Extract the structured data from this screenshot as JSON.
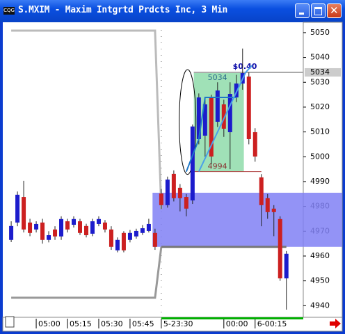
{
  "window": {
    "title": "S.MXIM - Maxim Intgrtd Prdcts Inc, 3 Min"
  },
  "chart_data": {
    "type": "candlestick",
    "up_color": "#1c1ccc",
    "down_color": "#cc2020",
    "ylim": [
      4935.6,
      5053.9
    ],
    "yticks": [
      4940,
      4950,
      4960,
      4970,
      4980,
      4990,
      5000,
      5010,
      5020,
      5030,
      5040,
      5050
    ],
    "xlim": [
      -0.9,
      46.7
    ],
    "xticks": [
      {
        "value": 4,
        "label": "05:00"
      },
      {
        "value": 9,
        "label": "05:15"
      },
      {
        "value": 14,
        "label": "05:30"
      },
      {
        "value": 19,
        "label": "05:45"
      },
      {
        "value": 24,
        "label": "5-23:30"
      },
      {
        "value": 34,
        "label": "00:00"
      },
      {
        "value": 39,
        "label": "6-00:15"
      }
    ],
    "candles": [
      {
        "o": 4966.5,
        "h": 4974.0,
        "l": 4965.6,
        "c": 4972.1
      },
      {
        "o": 4973.5,
        "h": 4986,
        "l": 4972,
        "c": 4984.7
      },
      {
        "o": 4983.8,
        "h": 4990.3,
        "l": 4969.5,
        "c": 4970.7
      },
      {
        "o": 4973.5,
        "h": 4975,
        "l": 4968,
        "c": 4969.3
      },
      {
        "o": 4970.7,
        "h": 4974,
        "l": 4969.5,
        "c": 4972.9
      },
      {
        "o": 4973.5,
        "h": 4975,
        "l": 4965,
        "c": 4966.5
      },
      {
        "o": 4966.5,
        "h": 4970,
        "l": 4965.5,
        "c": 4968.4
      },
      {
        "o": 4970.7,
        "h": 4972,
        "l": 4966.5,
        "c": 4967.9
      },
      {
        "o": 4967.9,
        "h": 4976,
        "l": 4966.5,
        "c": 4974.9
      },
      {
        "o": 4974.0,
        "h": 4975,
        "l": 4969.5,
        "c": 4970.7
      },
      {
        "o": 4972.6,
        "h": 4976,
        "l": 4971.5,
        "c": 4974.9
      },
      {
        "o": 4974.0,
        "h": 4975,
        "l": 4968.5,
        "c": 4969.3
      },
      {
        "o": 4972.1,
        "h": 4973,
        "l": 4967.5,
        "c": 4968.4
      },
      {
        "o": 4969.0,
        "h": 4975,
        "l": 4968,
        "c": 4974.0
      },
      {
        "o": 4972.9,
        "h": 4976,
        "l": 4972,
        "c": 4974.9
      },
      {
        "o": 4973.5,
        "h": 4974.5,
        "l": 4969.5,
        "c": 4970.7
      },
      {
        "o": 4970.7,
        "h": 4972,
        "l": 4962.5,
        "c": 4963.7
      },
      {
        "o": 4962.3,
        "h": 4967.5,
        "l": 4961.5,
        "c": 4966.5
      },
      {
        "o": 4969.3,
        "h": 4970,
        "l": 4961.5,
        "c": 4962.3
      },
      {
        "o": 4966.5,
        "h": 4970.5,
        "l": 4965.5,
        "c": 4969.3
      },
      {
        "o": 4967.9,
        "h": 4971,
        "l": 4967,
        "c": 4970.1
      },
      {
        "o": 4969.3,
        "h": 4972.5,
        "l": 4968.5,
        "c": 4971.2
      },
      {
        "o": 4970.1,
        "h": 4975,
        "l": 4969.5,
        "c": 4972.9
      },
      {
        "o": 4969.3,
        "h": 4971,
        "l": 4962.5,
        "c": 4963.7
      },
      {
        "o": 4985.2,
        "h": 4987,
        "l": 4979,
        "c": 4980.5
      },
      {
        "o": 4980.5,
        "h": 4992,
        "l": 4979.5,
        "c": 4990.8
      },
      {
        "o": 4993.1,
        "h": 4994.5,
        "l": 4982,
        "c": 4983.3
      },
      {
        "o": 4987.5,
        "h": 4989,
        "l": 4978,
        "c": 4983.3
      },
      {
        "o": 4983.8,
        "h": 4985,
        "l": 4976,
        "c": 4979.1
      },
      {
        "o": 4982.4,
        "h": 5013,
        "l": 4981,
        "c": 5012.2
      },
      {
        "o": 5007.1,
        "h": 5025.5,
        "l": 5005,
        "c": 5023.9
      },
      {
        "o": 5008.5,
        "h": 5024,
        "l": 5000,
        "c": 5021.1
      },
      {
        "o": 5023.9,
        "h": 5025,
        "l": 4997,
        "c": 5000.1
      },
      {
        "o": 5014.1,
        "h": 5030,
        "l": 5012,
        "c": 5026.7
      },
      {
        "o": 5021.1,
        "h": 5023,
        "l": 5008,
        "c": 5011.3
      },
      {
        "o": 5009.9,
        "h": 5030,
        "l": 4995,
        "c": 5025.3
      },
      {
        "o": 5023.9,
        "h": 5033,
        "l": 5022,
        "c": 5029.5
      },
      {
        "o": 5029.5,
        "h": 5043.6,
        "l": 5027,
        "c": 5033.7
      },
      {
        "o": 5032.3,
        "h": 5034,
        "l": 5005,
        "c": 5007.1
      },
      {
        "o": 5009.9,
        "h": 5011.5,
        "l": 4998,
        "c": 5000.1
      },
      {
        "o": 4991.7,
        "h": 4993,
        "l": 4972,
        "c": 4980.5
      },
      {
        "o": 4983.3,
        "h": 4985,
        "l": 4975,
        "c": 4977.7
      },
      {
        "o": 4979.1,
        "h": 4980.5,
        "l": 4968,
        "c": 4977.7
      },
      {
        "o": 4974.9,
        "h": 4976,
        "l": 4950,
        "c": 4951.0
      },
      {
        "o": 4951.0,
        "h": 4962,
        "l": 4938.4,
        "c": 4960.9
      }
    ],
    "band": {
      "high": 4985.5,
      "low": 4963.7,
      "color": "#8080f4"
    },
    "zone": {
      "high": 5034,
      "low": 4994,
      "color": "#8fdcaa",
      "change": "$0.40"
    },
    "upper_level": 5050.8,
    "lower_level": 4943.2
  }
}
